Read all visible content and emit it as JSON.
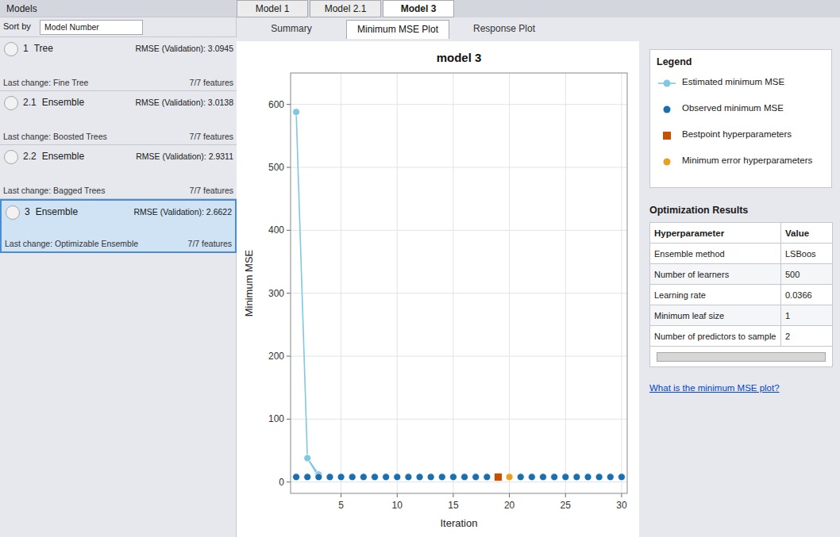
{
  "chart_data": {
    "type": "line",
    "title": "model 3",
    "x_label": "Iteration",
    "y_label": "Minimum MSE",
    "xlim": [
      0.5,
      30.5
    ],
    "ylim": [
      -18,
      650
    ],
    "xticks": [
      5,
      10,
      15,
      20,
      25,
      30
    ],
    "yticks": [
      0,
      100,
      200,
      300,
      400,
      500,
      600
    ],
    "grid": true,
    "legend_title": "Legend",
    "series": [
      {
        "name": "Estimated minimum MSE",
        "type": "line",
        "marker": "circle",
        "color": "#7ec8e3",
        "x": [
          1,
          2,
          3
        ],
        "values": [
          588,
          38,
          12
        ]
      },
      {
        "name": "Observed minimum MSE",
        "type": "scatter",
        "marker": "circle",
        "color": "#1a6faf",
        "x": [
          1,
          2,
          3,
          4,
          5,
          6,
          7,
          8,
          9,
          10,
          11,
          12,
          13,
          14,
          15,
          16,
          17,
          18,
          19,
          20,
          21,
          22,
          23,
          24,
          25,
          26,
          27,
          28,
          29,
          30
        ],
        "values": [
          8,
          8,
          8,
          8,
          8,
          8,
          8,
          8,
          8,
          8,
          8,
          8,
          8,
          8,
          8,
          8,
          8,
          8,
          8,
          8,
          8,
          8,
          8,
          8,
          8,
          8,
          8,
          8,
          8,
          8
        ]
      },
      {
        "name": "Bestpoint hyperparameters",
        "type": "scatter",
        "marker": "square",
        "color": "#c85000",
        "x": [
          19
        ],
        "values": [
          8
        ]
      },
      {
        "name": "Minimum error hyperparameters",
        "type": "scatter",
        "marker": "circle",
        "color": "#e8a020",
        "x": [
          20
        ],
        "values": [
          8
        ]
      }
    ]
  },
  "page": {
    "models_panel_title": "Models",
    "sort_label": "Sort by",
    "sort_by": "Model Number",
    "models": [
      {
        "id": "1",
        "type": "Tree",
        "rmse_label": "RMSE (Validation): 3.0945",
        "last_change": "Last change: Fine Tree",
        "features": "7/7 features",
        "selected": false
      },
      {
        "id": "2.1",
        "type": "Ensemble",
        "rmse_label": "RMSE (Validation): 3.0138",
        "last_change": "Last change: Boosted Trees",
        "features": "7/7 features",
        "selected": false
      },
      {
        "id": "2.2",
        "type": "Ensemble",
        "rmse_label": "RMSE (Validation): 2.9311",
        "last_change": "Last change: Bagged Trees",
        "features": "7/7 features",
        "selected": false
      },
      {
        "id": "3",
        "type": "Ensemble",
        "rmse_label": "RMSE (Validation): 2.6622",
        "last_change": "Last change: Optimizable Ensemble",
        "features": "7/7 features",
        "selected": true
      }
    ],
    "tabs_top": [
      "Model 1",
      "Model 2.1",
      "Model 3"
    ],
    "active_tab_top": "Model 3",
    "tabs_sub": [
      "Summary",
      "Minimum MSE Plot",
      "Response Plot"
    ],
    "active_tab_sub": "Minimum MSE Plot",
    "opt_title": "Optimization Results",
    "table_headers": [
      "Hyperparameter",
      "Value"
    ],
    "table_rows": [
      [
        "Ensemble method",
        "LSBoos"
      ],
      [
        "Number of learners",
        "500"
      ],
      [
        "Learning rate",
        "0.0366"
      ],
      [
        "Minimum leaf size",
        "1"
      ],
      [
        "Number of predictors to sample",
        "2"
      ]
    ],
    "link_text": "What is the minimum MSE plot?",
    "link_color": "#0044cc"
  }
}
